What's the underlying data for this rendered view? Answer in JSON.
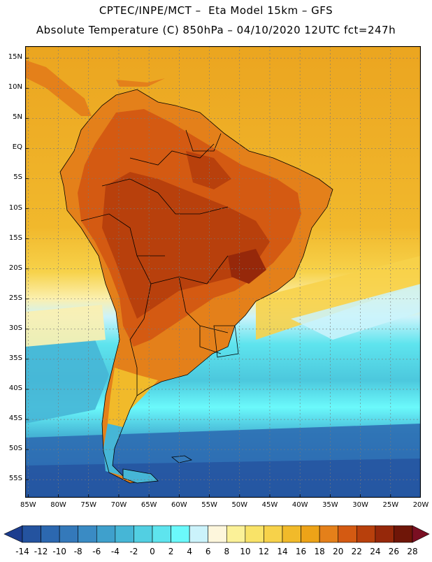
{
  "header": {
    "line1": "CPTEC/INPE/MCT –  Eta Model 15km – GFS",
    "line2": "Absolute Temperature (C) 850hPa – 04/10/2020 12UTC fct=247h"
  },
  "map": {
    "lat_labels": [
      "15N",
      "10N",
      "5N",
      "EQ",
      "5S",
      "10S",
      "15S",
      "20S",
      "25S",
      "30S",
      "35S",
      "40S",
      "45S",
      "50S",
      "55S"
    ],
    "lon_labels": [
      "85W",
      "80W",
      "75W",
      "70W",
      "65W",
      "60W",
      "55W",
      "50W",
      "45W",
      "40W",
      "35W",
      "30W",
      "25W",
      "20W"
    ],
    "grid": true,
    "lat_range": [
      17,
      -58
    ],
    "lon_range": [
      -85.5,
      -20
    ]
  },
  "colorbar": {
    "ticks": [
      "-14",
      "-12",
      "-10",
      "-8",
      "-6",
      "-4",
      "-2",
      "0",
      "2",
      "4",
      "6",
      "8",
      "10",
      "12",
      "14",
      "16",
      "18",
      "20",
      "22",
      "24",
      "26",
      "28"
    ],
    "colors": [
      "#1c3d8f",
      "#24539f",
      "#2c68b0",
      "#3479ba",
      "#3a8bc4",
      "#3fa0cc",
      "#46b6d6",
      "#52cfe2",
      "#5ee4ee",
      "#6bf9fb",
      "#cbf3fb",
      "#fdf6dc",
      "#fbf198",
      "#f9e368",
      "#f7d24a",
      "#f1ba2a",
      "#eda318",
      "#e4801a",
      "#d45a12",
      "#b8400c",
      "#96280a",
      "#6f1608",
      "#7a0f22"
    ]
  }
}
